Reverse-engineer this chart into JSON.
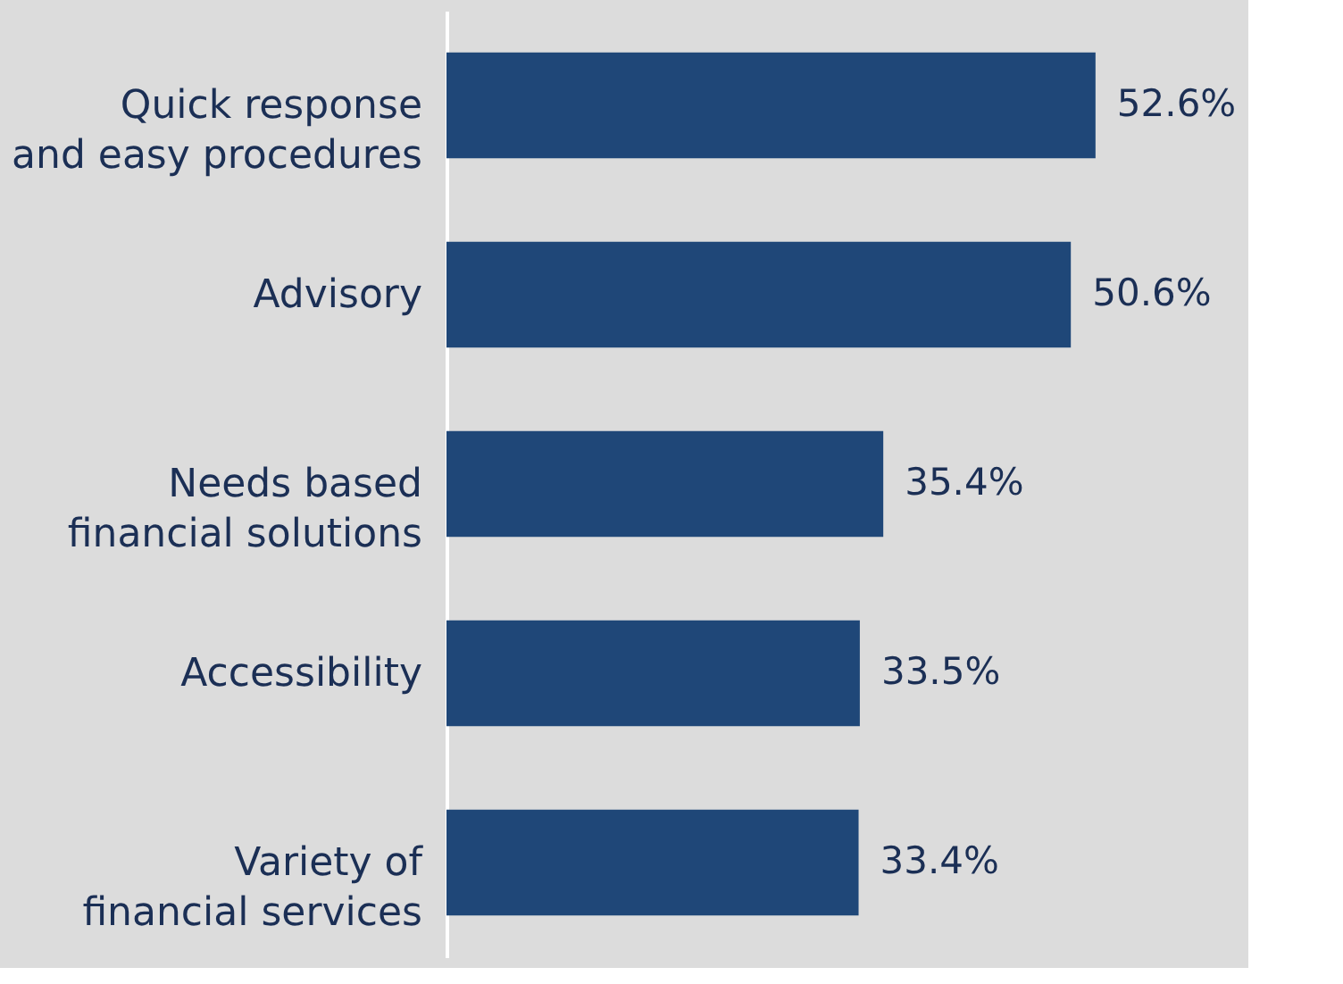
{
  "chart_data": {
    "type": "bar",
    "orientation": "horizontal",
    "categories": [
      "Quick response\nand easy procedures",
      "Advisory",
      "Needs based\nfinancial solutions",
      "Accessibility",
      "Variety of\nfinancial services"
    ],
    "values": [
      52.6,
      50.6,
      35.4,
      33.5,
      33.4
    ],
    "value_labels": [
      "52.6%",
      "50.6%",
      "35.4%",
      "33.5%",
      "33.4%"
    ],
    "color": "#1f4778",
    "tick_labels": "y"
  }
}
